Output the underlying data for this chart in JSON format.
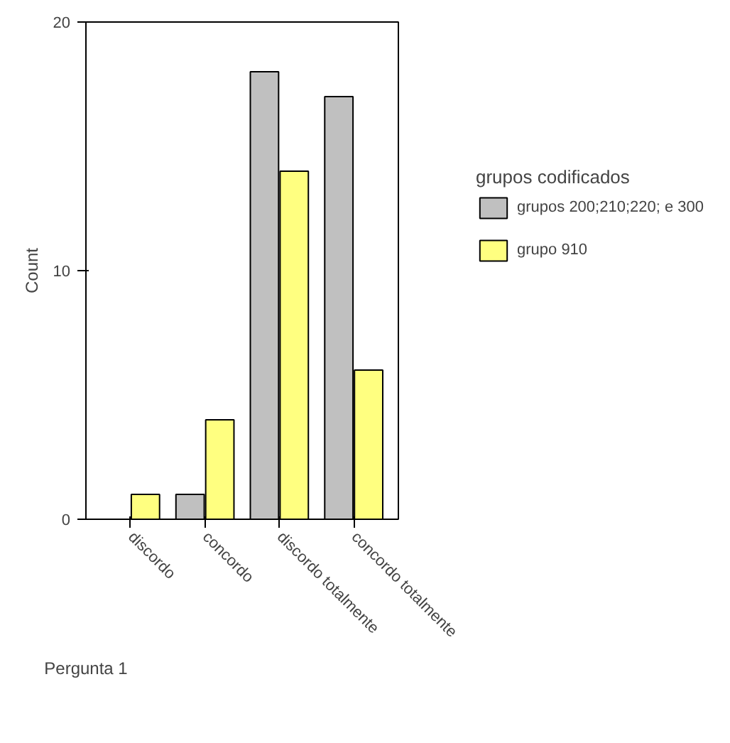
{
  "chart_data": {
    "type": "bar",
    "xlabel": "Pergunta 1",
    "ylabel": "Count",
    "legend_title": "grupos codificados",
    "categories": [
      "discordo",
      "concordo",
      "discordo totalmente",
      "concordo totalmente"
    ],
    "series": [
      {
        "name": "grupos 200;210;220; e 300",
        "color": "#c0c0c0",
        "values": [
          0,
          1,
          18,
          17
        ]
      },
      {
        "name": "grupo 910",
        "color": "#ffff80",
        "values": [
          1,
          4,
          14,
          6
        ]
      }
    ],
    "ylim": [
      0,
      20
    ],
    "yticks": [
      0,
      10,
      20
    ],
    "legend": "right"
  }
}
